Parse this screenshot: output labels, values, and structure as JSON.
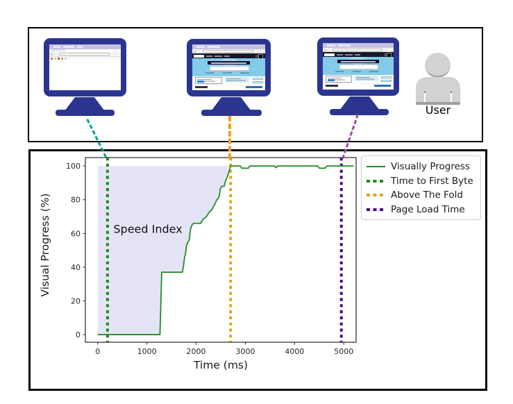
{
  "top_panel": {
    "monitors": [
      {
        "id": "monitor-first-byte",
        "screen_state": "blank browser page"
      },
      {
        "id": "monitor-above-fold",
        "screen_state": "page rendered above the fold"
      },
      {
        "id": "monitor-page-loaded",
        "screen_state": "fully loaded page"
      }
    ],
    "user_label": "User"
  },
  "colors": {
    "monitor_navy": "#2b3590",
    "browser_titlebar": "#c4c2e2",
    "hero_blue": "#82cce9",
    "connector_teal": "#00a38a",
    "connector_orange": "#f79a1f",
    "connector_purple": "#9b4fa0",
    "user_gray": "#d2d2d2"
  },
  "chart_data": {
    "type": "line",
    "xlabel": "Time (ms)",
    "ylabel": "Visual Progress (%)",
    "xlim": [
      -250,
      5250
    ],
    "ylim": [
      -4.5,
      105
    ],
    "xticks": [
      0,
      1000,
      2000,
      3000,
      4000,
      5000
    ],
    "yticks": [
      0,
      20,
      40,
      60,
      80,
      100
    ],
    "grid": false,
    "legend_position": "upper right outside",
    "area_fill": "#e5e4f6",
    "area_label": {
      "text": "Speed Index",
      "x": 1020,
      "y": 62
    },
    "series": [
      {
        "name": "Visually Progress",
        "color": "#228B22",
        "points": [
          [
            0,
            0
          ],
          [
            1265,
            0
          ],
          [
            1285,
            20
          ],
          [
            1300,
            37
          ],
          [
            1340,
            37
          ],
          [
            1720,
            37
          ],
          [
            1745,
            41
          ],
          [
            1765,
            46
          ],
          [
            1780,
            47
          ],
          [
            1805,
            53
          ],
          [
            1835,
            55
          ],
          [
            1860,
            56
          ],
          [
            1875,
            60
          ],
          [
            1890,
            63
          ],
          [
            1915,
            65
          ],
          [
            1950,
            66
          ],
          [
            2090,
            66
          ],
          [
            2130,
            68
          ],
          [
            2165,
            69
          ],
          [
            2210,
            70
          ],
          [
            2250,
            72
          ],
          [
            2275,
            73
          ],
          [
            2320,
            74
          ],
          [
            2350,
            76
          ],
          [
            2375,
            77
          ],
          [
            2420,
            80
          ],
          [
            2455,
            81
          ],
          [
            2475,
            83
          ],
          [
            2495,
            87
          ],
          [
            2530,
            88
          ],
          [
            2570,
            88
          ],
          [
            2595,
            91
          ],
          [
            2625,
            93
          ],
          [
            2650,
            95
          ],
          [
            2670,
            97
          ],
          [
            2705,
            100
          ],
          [
            2895,
            100
          ],
          [
            2925,
            98.7
          ],
          [
            3060,
            98.7
          ],
          [
            3090,
            100
          ],
          [
            3590,
            100
          ],
          [
            3620,
            99
          ],
          [
            3650,
            100
          ],
          [
            4470,
            100
          ],
          [
            4505,
            98.7
          ],
          [
            4620,
            98.7
          ],
          [
            4655,
            100
          ],
          [
            5200,
            100
          ]
        ]
      }
    ],
    "vlines": [
      {
        "name": "Time to First Byte",
        "x": 200,
        "color": "#1a8c1a"
      },
      {
        "name": "Above The Fold",
        "x": 2700,
        "color": "#dba617"
      },
      {
        "name": "Page Load Time",
        "x": 4950,
        "color": "#4B0082"
      }
    ],
    "legend_items": [
      {
        "label": "Visually Progress",
        "marker": "line",
        "color": "#228B22"
      },
      {
        "label": "Time to First Byte",
        "marker": "dotted",
        "color": "#1a8c1a"
      },
      {
        "label": "Above The Fold",
        "marker": "dotted",
        "color": "#dba617"
      },
      {
        "label": "Page Load Time",
        "marker": "dotted",
        "color": "#4B0082"
      }
    ]
  }
}
